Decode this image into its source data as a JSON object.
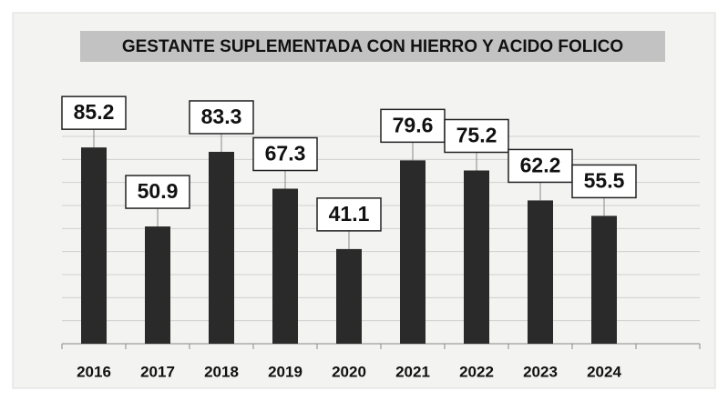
{
  "chart_data": {
    "type": "bar",
    "title": "GESTANTE SUPLEMENTADA CON HIERRO Y ACIDO FOLICO",
    "categories": [
      "2016",
      "2017",
      "2018",
      "2019",
      "2020",
      "2021",
      "2022",
      "2023",
      "2024"
    ],
    "values": [
      85.2,
      50.9,
      83.3,
      67.3,
      41.1,
      79.6,
      75.2,
      62.2,
      55.5
    ],
    "color": "#2a2a2a",
    "ylim": [
      0,
      90
    ],
    "yticks": [
      0,
      10,
      20,
      30,
      40,
      50,
      60,
      70,
      80,
      90
    ],
    "grid": true
  }
}
